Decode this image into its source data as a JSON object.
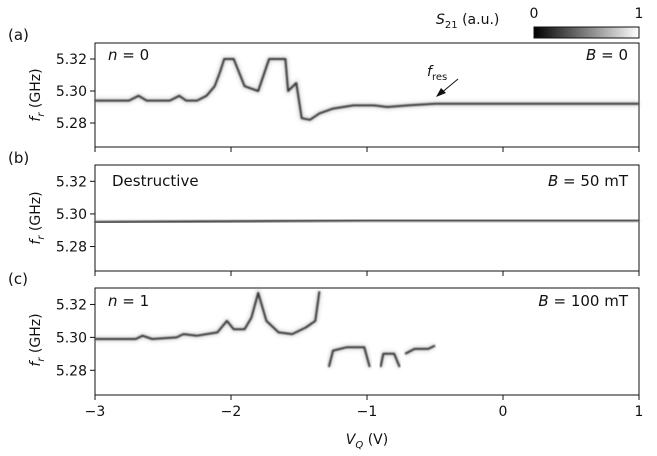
{
  "chart_data": {
    "type": "heatmap",
    "shared_x": {
      "label_main": "V",
      "label_sub": "Q",
      "label_unit": " (V)",
      "range": [
        -3,
        1
      ],
      "ticks": [
        -3,
        -2,
        -1,
        0,
        1
      ],
      "tick_labels": [
        "−3",
        "−2",
        "−1",
        "0",
        "1"
      ]
    },
    "colorbar": {
      "label_main": "S",
      "label_sub": "21",
      "label_unit": " (a.u.)",
      "min_label": "0",
      "max_label": "1",
      "range": [
        0,
        1
      ]
    },
    "panels": [
      {
        "id": "a",
        "panel_label": "(a)",
        "left_text": "n = 0",
        "right_text": "B = 0",
        "annotation": "f_res",
        "annotation_main": "f",
        "annotation_sub": "res",
        "ylabel_main": "f",
        "ylabel_sub": "r",
        "ylabel_unit": " (GHz)",
        "ylim": [
          5.265,
          5.33
        ],
        "yticks": [
          5.28,
          5.3,
          5.32
        ],
        "ytick_labels": [
          "5.28",
          "5.30",
          "5.32"
        ],
        "resonance": [
          [
            -3.0,
            5.294
          ],
          [
            -2.75,
            5.294
          ],
          [
            -2.68,
            5.297
          ],
          [
            -2.62,
            5.294
          ],
          [
            -2.45,
            5.294
          ],
          [
            -2.38,
            5.297
          ],
          [
            -2.33,
            5.294
          ],
          [
            -2.25,
            5.294
          ],
          [
            -2.18,
            5.297
          ],
          [
            -2.12,
            5.303
          ],
          [
            -2.08,
            5.312
          ],
          [
            -2.05,
            5.32
          ],
          [
            -1.98,
            5.32
          ],
          [
            -1.9,
            5.303
          ],
          [
            -1.8,
            5.3
          ],
          [
            -1.72,
            5.32
          ],
          [
            -1.6,
            5.32
          ],
          [
            -1.58,
            5.3
          ],
          [
            -1.52,
            5.305
          ],
          [
            -1.48,
            5.283
          ],
          [
            -1.42,
            5.282
          ],
          [
            -1.35,
            5.286
          ],
          [
            -1.25,
            5.289
          ],
          [
            -1.1,
            5.291
          ],
          [
            -0.95,
            5.291
          ],
          [
            -0.85,
            5.29
          ],
          [
            -0.7,
            5.291
          ],
          [
            -0.5,
            5.292
          ],
          [
            0.0,
            5.292
          ],
          [
            1.0,
            5.292
          ]
        ]
      },
      {
        "id": "b",
        "panel_label": "(b)",
        "left_text": "Destructive",
        "right_text": "B = 50 mT",
        "ylabel_main": "f",
        "ylabel_sub": "r",
        "ylabel_unit": " (GHz)",
        "ylim": [
          5.265,
          5.33
        ],
        "yticks": [
          5.28,
          5.3,
          5.32
        ],
        "ytick_labels": [
          "5.28",
          "5.30",
          "5.32"
        ],
        "resonance": [
          [
            -3.0,
            5.295
          ],
          [
            -1.0,
            5.296
          ],
          [
            1.0,
            5.296
          ]
        ]
      },
      {
        "id": "c",
        "panel_label": "(c)",
        "left_text": "n = 1",
        "right_text": "B = 100 mT",
        "ylabel_main": "f",
        "ylabel_sub": "r",
        "ylabel_unit": " (GHz)",
        "ylim": [
          5.265,
          5.33
        ],
        "yticks": [
          5.28,
          5.3,
          5.32
        ],
        "ytick_labels": [
          "5.28",
          "5.30",
          "5.32"
        ],
        "resonance": [
          [
            -3.0,
            5.299
          ],
          [
            -2.7,
            5.299
          ],
          [
            -2.65,
            5.301
          ],
          [
            -2.58,
            5.299
          ],
          [
            -2.4,
            5.3
          ],
          [
            -2.35,
            5.302
          ],
          [
            -2.25,
            5.301
          ],
          [
            -2.1,
            5.303
          ],
          [
            -2.03,
            5.31
          ],
          [
            -1.98,
            5.305
          ],
          [
            -1.9,
            5.305
          ],
          [
            -1.85,
            5.312
          ],
          [
            -1.8,
            5.327
          ],
          [
            -1.74,
            5.31
          ],
          [
            -1.65,
            5.303
          ],
          [
            -1.55,
            5.302
          ],
          [
            -1.45,
            5.306
          ],
          [
            -1.38,
            5.31
          ],
          [
            -1.35,
            5.328
          ]
        ],
        "resonance_segments": [
          [
            [
              -1.28,
              5.282
            ],
            [
              -1.25,
              5.292
            ],
            [
              -1.15,
              5.294
            ],
            [
              -1.02,
              5.294
            ],
            [
              -0.98,
              5.282
            ]
          ],
          [
            [
              -0.9,
              5.282
            ],
            [
              -0.88,
              5.29
            ],
            [
              -0.8,
              5.29
            ],
            [
              -0.76,
              5.282
            ]
          ],
          [
            [
              -0.72,
              5.29
            ],
            [
              -0.65,
              5.293
            ],
            [
              -0.55,
              5.293
            ],
            [
              -0.5,
              5.295
            ]
          ]
        ]
      }
    ]
  }
}
